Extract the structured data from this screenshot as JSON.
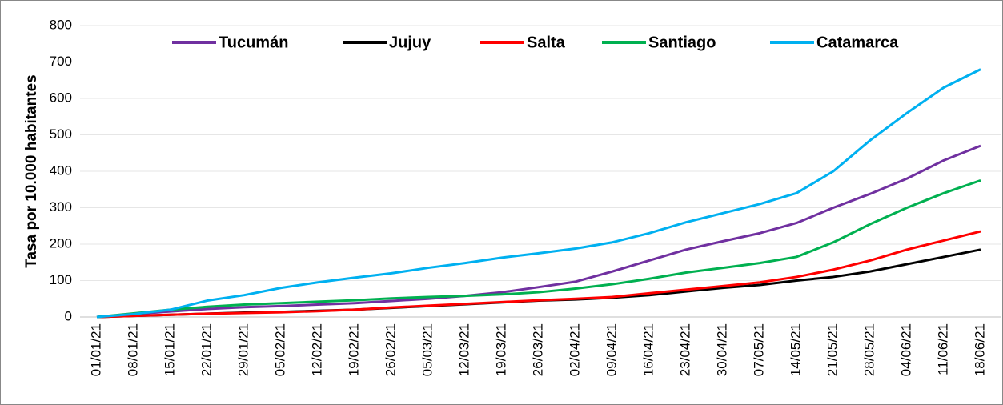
{
  "chart_data": {
    "type": "line",
    "y_label": "Tasa por 10.000 habitantes",
    "categories": [
      "01/01/21",
      "08/01/21",
      "15/01/21",
      "22/01/21",
      "29/01/21",
      "05/02/21",
      "12/02/21",
      "19/02/21",
      "26/02/21",
      "05/03/21",
      "12/03/21",
      "19/03/21",
      "26/03/21",
      "02/04/21",
      "09/04/21",
      "16/04/21",
      "23/04/21",
      "30/04/21",
      "07/05/21",
      "14/05/21",
      "21/05/21",
      "28/05/21",
      "04/06/21",
      "11/06/21",
      "18/06/21"
    ],
    "series": [
      {
        "name": "Tucumán",
        "color": "#7030a0",
        "values": [
          0,
          8,
          15,
          22,
          27,
          30,
          34,
          38,
          44,
          50,
          58,
          68,
          82,
          97,
          125,
          155,
          185,
          208,
          230,
          258,
          300,
          338,
          380,
          430,
          470
        ]
      },
      {
        "name": "Jujuy",
        "color": "#000000",
        "values": [
          0,
          3,
          6,
          9,
          12,
          14,
          17,
          20,
          25,
          30,
          35,
          40,
          45,
          48,
          53,
          60,
          70,
          80,
          88,
          100,
          110,
          125,
          145,
          165,
          185
        ]
      },
      {
        "name": "Salta",
        "color": "#ff0000",
        "values": [
          0,
          3,
          6,
          9,
          11,
          13,
          16,
          20,
          26,
          31,
          36,
          41,
          46,
          50,
          55,
          65,
          75,
          85,
          95,
          110,
          130,
          155,
          185,
          210,
          235
        ]
      },
      {
        "name": "Santiago",
        "color": "#00b050",
        "values": [
          0,
          10,
          20,
          28,
          34,
          38,
          42,
          46,
          51,
          55,
          58,
          62,
          68,
          78,
          90,
          105,
          122,
          135,
          148,
          165,
          205,
          255,
          300,
          340,
          375
        ]
      },
      {
        "name": "Catamarca",
        "color": "#00b0f0",
        "values": [
          0,
          8,
          20,
          45,
          60,
          80,
          95,
          108,
          120,
          135,
          148,
          163,
          175,
          188,
          205,
          230,
          260,
          285,
          310,
          340,
          400,
          485,
          560,
          630,
          680
        ]
      }
    ],
    "ylim": [
      0,
      800
    ],
    "yticks": [
      0,
      100,
      200,
      300,
      400,
      500,
      600,
      700,
      800
    ],
    "grid": true,
    "legend": "top"
  }
}
